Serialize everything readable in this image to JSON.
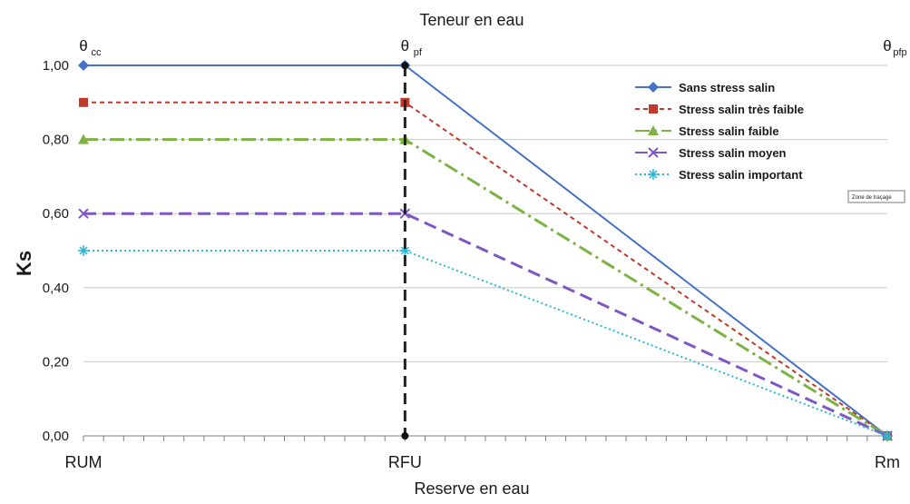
{
  "chart_data": {
    "type": "line",
    "top_axis_title": "Teneur en eau",
    "xlabel": "Reserve en eau",
    "ylabel": "Ks",
    "categories": [
      "RUM",
      "RFU",
      "Rm"
    ],
    "x": [
      0,
      0.4,
      1
    ],
    "top_labels": [
      {
        "base": "θ",
        "sub": "cc"
      },
      {
        "base": "θ",
        "sub": "pf"
      },
      {
        "base": "θ",
        "sub": "pfp"
      }
    ],
    "ylim": [
      0,
      1
    ],
    "y_ticks": [
      "0,00",
      "0,20",
      "0,40",
      "0,60",
      "0,80",
      "1,00"
    ],
    "y_tick_values": [
      0,
      0.2,
      0.4,
      0.6,
      0.8,
      1.0
    ],
    "grid": true,
    "legend_position": "top-right",
    "series": [
      {
        "name": "Sans stress salin",
        "values": [
          1.0,
          1.0,
          0.0
        ],
        "color": "#4472c4",
        "dash": "solid",
        "marker": "diamond"
      },
      {
        "name": "Stress salin très faible",
        "values": [
          0.9,
          0.9,
          0.0
        ],
        "color": "#c0392b",
        "dash": "dash-short",
        "marker": "square"
      },
      {
        "name": "Stress salin faible",
        "values": [
          0.8,
          0.8,
          0.0
        ],
        "color": "#7cb342",
        "dash": "dash-dot",
        "marker": "triangle"
      },
      {
        "name": "Stress salin moyen",
        "values": [
          0.6,
          0.6,
          0.0
        ],
        "color": "#7e57c2",
        "dash": "dash-long",
        "marker": "x"
      },
      {
        "name": "Stress salin important",
        "values": [
          0.5,
          0.5,
          0.0
        ],
        "color": "#29b6d6",
        "dash": "dot",
        "marker": "star"
      }
    ],
    "reference_line": {
      "x": 0.4,
      "color": "#222222",
      "style": "dashed"
    },
    "tooltip": "Zone de traçage"
  }
}
